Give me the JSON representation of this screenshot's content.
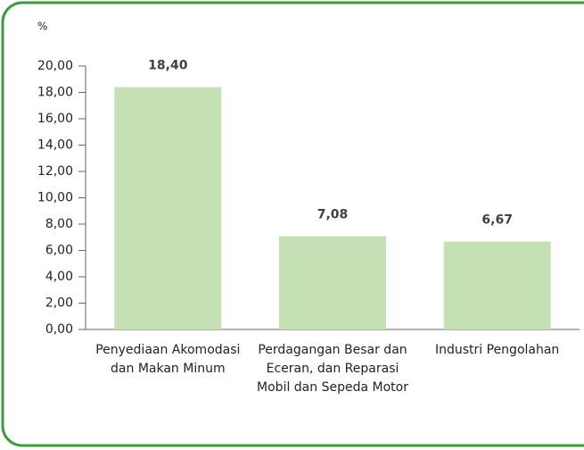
{
  "chart_data": {
    "type": "bar",
    "y_label": "%",
    "categories": [
      "Penyediaan Akomodasi dan Makan Minum",
      "Perdagangan Besar dan Eceran, dan Reparasi Mobil dan Sepeda Motor",
      "Industri Pengolahan"
    ],
    "values": [
      18.4,
      7.08,
      6.67
    ],
    "value_labels": [
      "18,40",
      "7,08",
      "6,67"
    ],
    "color": "#c5e0b4",
    "ylim": [
      0,
      20
    ],
    "yticks": [
      {
        "value": 0,
        "label": "0,00"
      },
      {
        "value": 2,
        "label": "2,00"
      },
      {
        "value": 4,
        "label": "4,00"
      },
      {
        "value": 6,
        "label": "6,00"
      },
      {
        "value": 8,
        "label": "8,00"
      },
      {
        "value": 10,
        "label": "10,00"
      },
      {
        "value": 12,
        "label": "12,00"
      },
      {
        "value": 14,
        "label": "14,00"
      },
      {
        "value": 16,
        "label": "16,00"
      },
      {
        "value": 18,
        "label": "18,00"
      },
      {
        "value": 20,
        "label": "20,00"
      }
    ]
  }
}
